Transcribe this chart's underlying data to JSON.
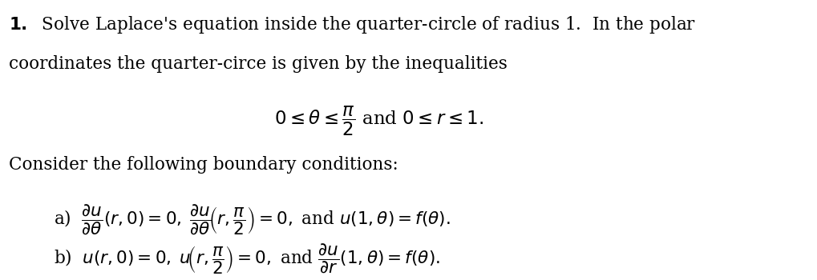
{
  "background_color": "#ffffff",
  "figsize": [
    10.2,
    3.5
  ],
  "dpi": 100,
  "text_color": "#000000",
  "line1": "\\textbf{1.}\\;\\; \\text{Solve Laplace's equation inside the quarter-circle of radius 1.\\;\\; In the polar}",
  "line2": "\\text{coordinates the quarter-circe is given by the inequalities}",
  "inequalities": "0 \\leq \\theta \\leq \\dfrac{\\pi}{2} \\text{ and } 0 \\leq r \\leq 1.",
  "consider": "\\text{Consider the following boundary conditions:}",
  "cond_a": "\\text{a)}\\;\\; \\dfrac{\\partial u}{\\partial \\theta}(r,0) = 0,\\; \\dfrac{\\partial u}{\\partial \\theta}\\!\\left(r,\\dfrac{\\pi}{2}\\right) = 0,\\; \\text{and}\\; u(1,\\theta) = f(\\theta).",
  "cond_b": "\\text{b)}\\;\\; u(r,0) = 0,\\; u\\!\\left(r,\\dfrac{\\pi}{2}\\right) = 0,\\; \\text{and}\\; \\dfrac{\\partial u}{\\partial r}(1,\\theta) = f(\\theta)."
}
